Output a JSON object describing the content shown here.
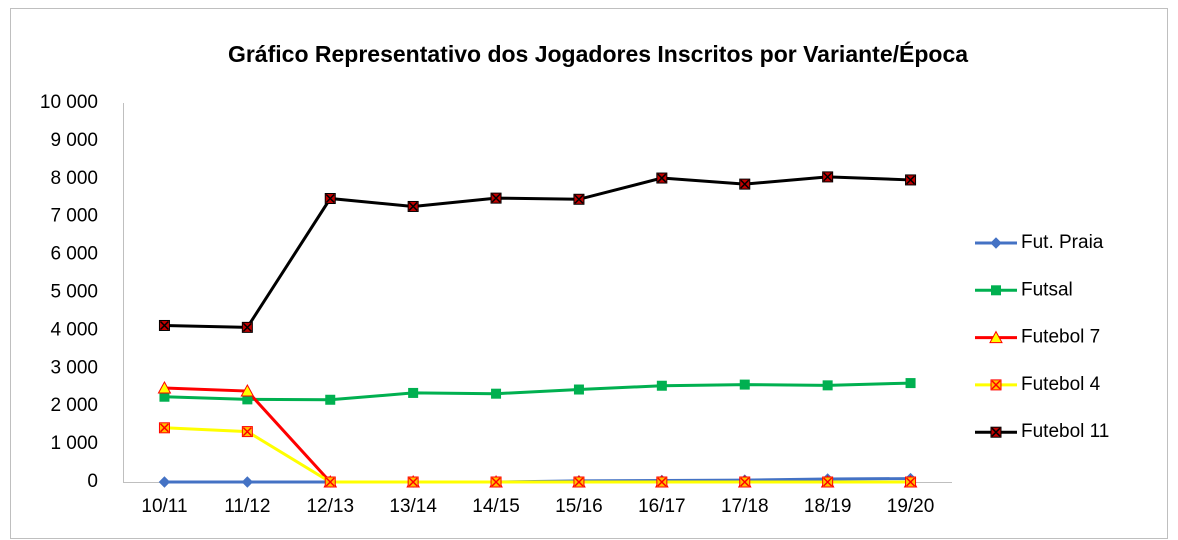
{
  "chart_data": {
    "type": "line",
    "title": "Gráfico Representativo dos Jogadores Inscritos por Variante/Época",
    "categories": [
      "10/11",
      "11/12",
      "12/13",
      "13/14",
      "14/15",
      "15/16",
      "16/17",
      "17/18",
      "18/19",
      "19/20"
    ],
    "series": [
      {
        "name": "Fut. Praia",
        "color": "#4472c4",
        "marker": "diamond",
        "marker_fill": "#4472c4",
        "marker_edge": "#4472c4",
        "values": [
          0,
          0,
          0,
          0,
          0,
          30,
          40,
          50,
          80,
          90
        ]
      },
      {
        "name": "Futsal",
        "color": "#00b050",
        "marker": "square",
        "marker_fill": "#00b050",
        "marker_edge": "#00b050",
        "values": [
          2250,
          2180,
          2170,
          2350,
          2330,
          2440,
          2540,
          2570,
          2550,
          2610
        ]
      },
      {
        "name": "Futebol 7",
        "color": "#ff0000",
        "marker": "triangle",
        "marker_fill": "#ffff00",
        "marker_edge": "#ff0000",
        "values": [
          2480,
          2400,
          0,
          0,
          0,
          0,
          0,
          0,
          0,
          0
        ]
      },
      {
        "name": "Futebol 4",
        "color": "#ffff00",
        "marker": "xsquare",
        "marker_fill": "#ffc000",
        "marker_edge": "#ff0000",
        "values": [
          1430,
          1330,
          0,
          0,
          0,
          0,
          0,
          0,
          0,
          0
        ]
      },
      {
        "name": "Futebol 11",
        "color": "#000000",
        "marker": "xsquare",
        "marker_fill": "#c00000",
        "marker_edge": "#000000",
        "values": [
          4130,
          4080,
          7480,
          7270,
          7490,
          7460,
          8020,
          7860,
          8050,
          7970
        ]
      }
    ],
    "ylim": [
      0,
      10000
    ],
    "yticks": [
      0,
      {
        "value": 1000,
        "label": "1 000"
      },
      {
        "value": 2000,
        "label": "2 000"
      },
      {
        "value": 3000,
        "label": "3 000"
      },
      {
        "value": 4000,
        "label": "4 000"
      },
      {
        "value": 5000,
        "label": "5 000"
      },
      {
        "value": 6000,
        "label": "6 000"
      },
      {
        "value": 7000,
        "label": "7 000"
      },
      {
        "value": 8000,
        "label": "8 000"
      },
      {
        "value": 9000,
        "label": "9 000"
      },
      {
        "value": 10000,
        "label": "10 000"
      }
    ],
    "grid": false,
    "legend": "right"
  }
}
